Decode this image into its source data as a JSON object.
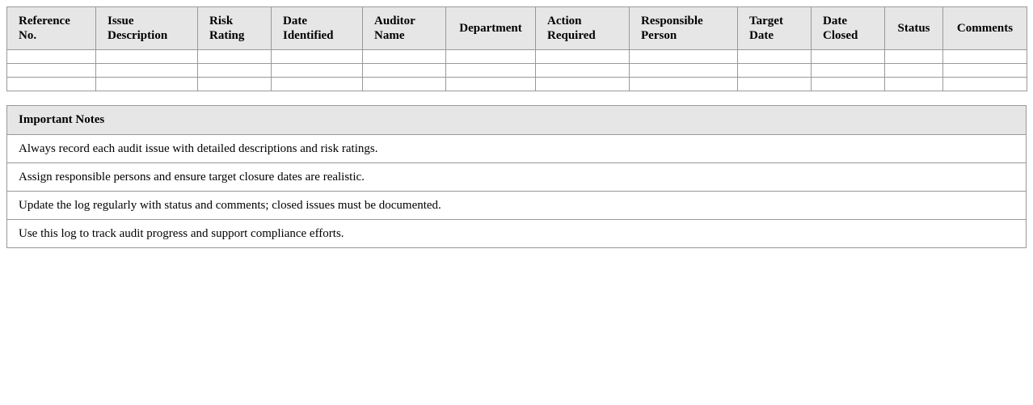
{
  "log": {
    "headers": [
      "Reference No.",
      "Issue Description",
      "Risk Rating",
      "Date Identified",
      "Auditor Name",
      "Department",
      "Action Required",
      "Responsible Person",
      "Target Date",
      "Date Closed",
      "Status",
      "Comments"
    ],
    "rows": [
      [
        "",
        "",
        "",
        "",
        "",
        "",
        "",
        "",
        "",
        "",
        "",
        ""
      ],
      [
        "",
        "",
        "",
        "",
        "",
        "",
        "",
        "",
        "",
        "",
        "",
        ""
      ],
      [
        "",
        "",
        "",
        "",
        "",
        "",
        "",
        "",
        "",
        "",
        "",
        ""
      ]
    ]
  },
  "notes": {
    "title": "Important Notes",
    "items": [
      "Always record each audit issue with detailed descriptions and risk ratings.",
      "Assign responsible persons and ensure target closure dates are realistic.",
      "Update the log regularly with status and comments; closed issues must be documented.",
      "Use this log to track audit progress and support compliance efforts."
    ]
  }
}
